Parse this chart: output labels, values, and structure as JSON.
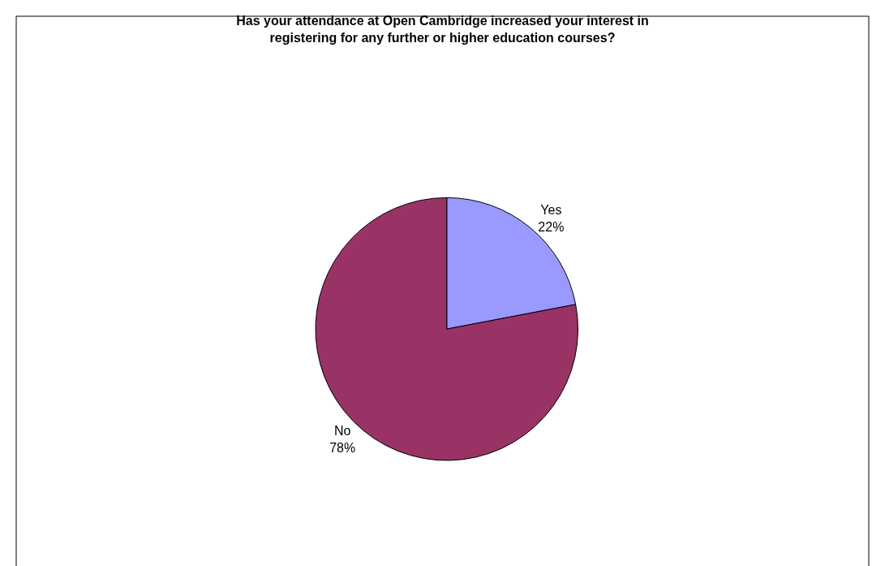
{
  "chart_data": {
    "type": "pie",
    "title": "Has your attendance at Open Cambridge increased your interest in\nregistering for any further or higher education courses?",
    "categories": [
      "Yes",
      "No"
    ],
    "values": [
      22,
      78
    ],
    "value_labels": [
      "22%",
      "78%"
    ],
    "colors": [
      "#9999ff",
      "#993366"
    ],
    "legend": false
  }
}
